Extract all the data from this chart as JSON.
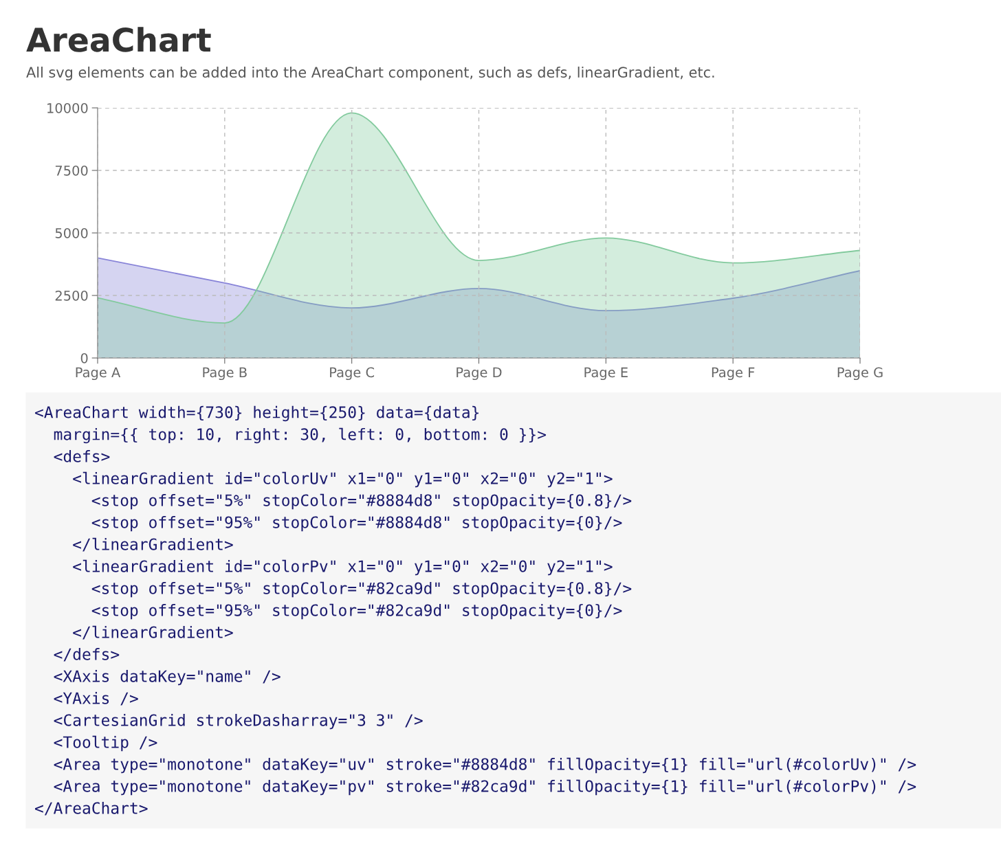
{
  "chart_data": {
    "type": "area",
    "title": "AreaChart",
    "subtitle": "All svg elements can be added into the AreaChart component, such as defs, linearGradient, etc.",
    "categories": [
      "Page A",
      "Page B",
      "Page C",
      "Page D",
      "Page E",
      "Page F",
      "Page G"
    ],
    "series": [
      {
        "color": "#8884d8",
        "values": [
          4000,
          3000,
          2000,
          2780,
          1890,
          2390,
          3490
        ]
      },
      {
        "color": "#82ca9d",
        "values": [
          2400,
          1400,
          9800,
          3900,
          4800,
          3800,
          4300
        ]
      }
    ],
    "ylim": [
      0,
      10000
    ],
    "yticks": [
      0,
      2500,
      5000,
      7500,
      10000
    ],
    "grid": true,
    "line_style": "solid",
    "annotations": [
      "<AreaChart width={730} height={250} data={data}",
      "  margin={{ top: 10, right: 30, left: 0, bottom: 0 }}>",
      "  <defs>",
      "    <linearGradient id=\"colorUv\" x1=\"0\" y1=\"0\" x2=\"0\" y2=\"1\">",
      "      <stop offset=\"5%\" stopColor=\"#8884d8\" stopOpacity={0.8}/>",
      "      <stop offset=\"95%\" stopColor=\"#8884d8\" stopOpacity={0}/>",
      "    </linearGradient>",
      "    <linearGradient id=\"colorPv\" x1=\"0\" y1=\"0\" x2=\"0\" y2=\"1\">",
      "      <stop offset=\"5%\" stopColor=\"#82ca9d\" stopOpacity={0.8}/>",
      "      <stop offset=\"95%\" stopColor=\"#82ca9d\" stopOpacity={0}/>",
      "    </linearGradient>",
      "  </defs>",
      "  <XAxis dataKey=\"name\" />",
      "  <YAxis />",
      "  <CartesianGrid strokeDasharray=\"3 3\" />",
      "  <Tooltip />",
      "  <Area type=\"monotone\" dataKey=\"uv\" stroke=\"#8884d8\" fillOpacity={1} fill=\"url(#colorUv)\" />",
      "  <Area type=\"monotone\" dataKey=\"pv\" stroke=\"#82ca9d\" fillOpacity={1} fill=\"url(#colorPv)\" />",
      "</AreaChart>"
    ]
  }
}
